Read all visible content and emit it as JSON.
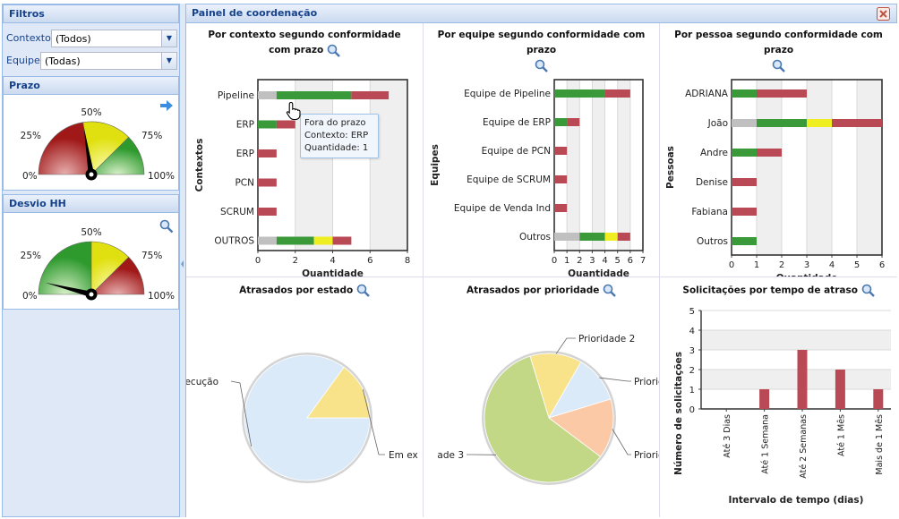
{
  "filters": {
    "title": "Filtros",
    "context_label": "Contexto",
    "context_value": "(Todos)",
    "team_label": "Equipe",
    "team_value": "(Todas)"
  },
  "prazo": {
    "title": "Prazo",
    "labels": [
      "0%",
      "25%",
      "50%",
      "75%",
      "100%"
    ],
    "needle_percent": 45
  },
  "desvio": {
    "title": "Desvio HH",
    "labels": [
      "0%",
      "25%",
      "50%",
      "75%",
      "100%"
    ],
    "needle_percent": 8
  },
  "main": {
    "title": "Painel de coordenação"
  },
  "colors": {
    "gray": "#c0c0c0",
    "green": "#3a9a3a",
    "yellow": "#eeee22",
    "red": "#b94a55",
    "pie_blue": "#dbeaf8",
    "pie_yellow": "#f8e28a",
    "pie_green": "#c2d887",
    "pie_orange": "#fcc9a6"
  },
  "tooltip": {
    "line1": "Fora do prazo",
    "line2": "Contexto: ERP",
    "line3": "Quantidade: 1"
  },
  "chart_data": [
    {
      "type": "bar",
      "orientation": "horizontal",
      "stacked": true,
      "title": "Por contexto segundo conformidade com prazo",
      "xlabel": "Quantidade",
      "ylabel": "Contextos",
      "categories": [
        "Pipeline",
        "ERP",
        "ERP",
        "PCN",
        "SCRUM",
        "OUTROS"
      ],
      "series": [
        {
          "color": "gray",
          "values": [
            1,
            0,
            0,
            0,
            0,
            1
          ]
        },
        {
          "color": "green",
          "values": [
            4,
            1,
            0,
            0,
            0,
            2
          ]
        },
        {
          "color": "yellow",
          "values": [
            0,
            0,
            0,
            0,
            0,
            1
          ]
        },
        {
          "color": "red",
          "values": [
            2,
            1,
            1,
            1,
            1,
            1
          ]
        }
      ],
      "xticks": [
        0,
        2,
        4,
        6,
        8
      ],
      "xlim": [
        0,
        8
      ]
    },
    {
      "type": "bar",
      "orientation": "horizontal",
      "stacked": true,
      "title": "Por equipe segundo conformidade com prazo",
      "xlabel": "Quantidade",
      "ylabel": "Equipes",
      "categories": [
        "Equipe de Pipeline",
        "Equipe de ERP",
        "Equipe de PCN",
        "Equipe de SCRUM",
        "Equipe de Venda Ind",
        "Outros"
      ],
      "series": [
        {
          "color": "gray",
          "values": [
            0,
            0,
            0,
            0,
            0,
            2
          ]
        },
        {
          "color": "green",
          "values": [
            4,
            1,
            0,
            0,
            0,
            2
          ]
        },
        {
          "color": "yellow",
          "values": [
            0,
            0,
            0,
            0,
            0,
            1
          ]
        },
        {
          "color": "red",
          "values": [
            2,
            1,
            1,
            1,
            1,
            1
          ]
        }
      ],
      "xticks": [
        0,
        1,
        2,
        3,
        4,
        5,
        6,
        7
      ],
      "xlim": [
        0,
        7
      ]
    },
    {
      "type": "bar",
      "orientation": "horizontal",
      "stacked": true,
      "title": "Por pessoa segundo conformidade com prazo",
      "xlabel": "Quantidade",
      "ylabel": "Pessoas",
      "categories": [
        "ADRIANA",
        "João",
        "Andre",
        "Denise",
        "Fabiana",
        "Outros"
      ],
      "series": [
        {
          "color": "gray",
          "values": [
            0,
            1,
            0,
            0,
            0,
            0
          ]
        },
        {
          "color": "green",
          "values": [
            1,
            2,
            1,
            0,
            0,
            1
          ]
        },
        {
          "color": "yellow",
          "values": [
            0,
            1,
            0,
            0,
            0,
            0
          ]
        },
        {
          "color": "red",
          "values": [
            2,
            2,
            1,
            1,
            1,
            0
          ]
        }
      ],
      "xticks": [
        0,
        1,
        2,
        3,
        4,
        5,
        6
      ],
      "xlim": [
        0,
        6
      ]
    },
    {
      "type": "pie",
      "title": "Atrasados por estado",
      "slices": [
        {
          "label": "ecução",
          "value": 85,
          "color": "pie_blue"
        },
        {
          "label": "Em ex",
          "value": 15,
          "color": "pie_yellow"
        }
      ]
    },
    {
      "type": "pie",
      "title": "Atrasados por prioridade",
      "slices": [
        {
          "label": "Prioridade 2",
          "value": 13,
          "color": "pie_yellow"
        },
        {
          "label": "Priorid",
          "value": 12,
          "color": "pie_blue"
        },
        {
          "label": "Priorid",
          "value": 15,
          "color": "pie_orange"
        },
        {
          "label": "ade 3",
          "value": 60,
          "color": "pie_green"
        }
      ]
    },
    {
      "type": "bar",
      "title": "Solicitações por tempo de atraso",
      "xlabel": "Intervalo de tempo (dias)",
      "ylabel": "Número de solicitações",
      "categories": [
        "Até 3 Dias",
        "Até 1 Semana",
        "Até 2 Semanas",
        "Até 1 Mês",
        "Mais de 1 Mês"
      ],
      "values": [
        0,
        1,
        3,
        2,
        1
      ],
      "yticks": [
        0,
        1,
        2,
        3,
        4,
        5
      ],
      "ylim": [
        0,
        5
      ]
    }
  ]
}
